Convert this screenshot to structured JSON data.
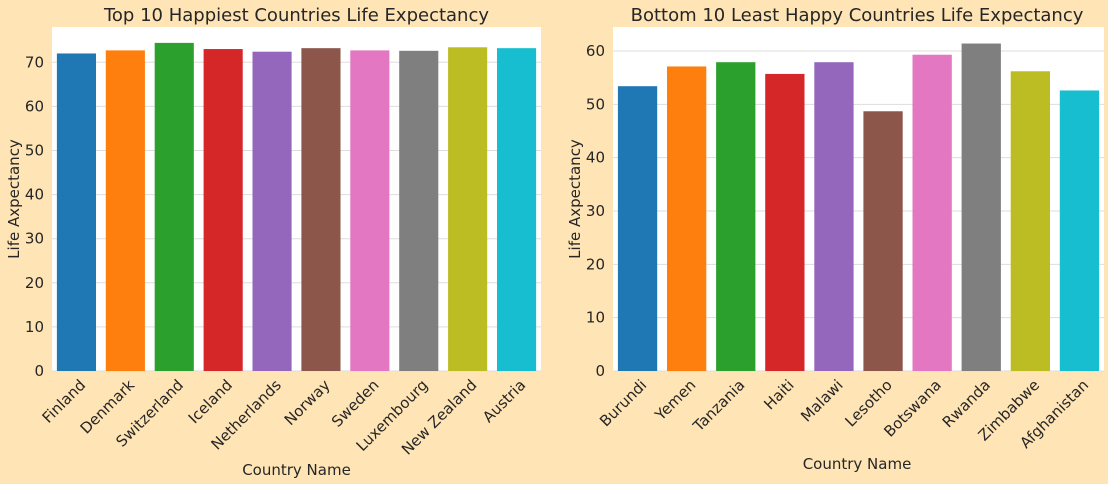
{
  "colors": {
    "background": "#FFE4B5",
    "plot_bg": "#FFFFFF",
    "grid": "#DDDDDD",
    "palette": [
      "#1f77b4",
      "#ff7f0e",
      "#2ca02c",
      "#d62728",
      "#9467bd",
      "#8c564b",
      "#e377c2",
      "#7f7f7f",
      "#bcbd22",
      "#17becf"
    ]
  },
  "chart_data": [
    {
      "type": "bar",
      "title": "Top 10 Happiest Countries Life Expectancy",
      "xlabel": "Country Name",
      "ylabel": "Life Axpectancy",
      "categories": [
        "Finland",
        "Denmark",
        "Switzerland",
        "Iceland",
        "Netherlands",
        "Norway",
        "Sweden",
        "Luxembourg",
        "New Zealand",
        "Austria"
      ],
      "values": [
        72.0,
        72.7,
        74.4,
        73.0,
        72.4,
        73.2,
        72.7,
        72.6,
        73.4,
        73.2
      ],
      "ylim": [
        0,
        78
      ],
      "yticks": [
        0,
        10,
        20,
        30,
        40,
        50,
        60,
        70
      ],
      "grid": true
    },
    {
      "type": "bar",
      "title": "Bottom 10 Least Happy Countries Life Expectancy",
      "xlabel": "Country Name",
      "ylabel": "Life Axpectancy",
      "categories": [
        "Burundi",
        "Yemen",
        "Tanzania",
        "Haiti",
        "Malawi",
        "Lesotho",
        "Botswana",
        "Rwanda",
        "Zimbabwe",
        "Afghanistan"
      ],
      "values": [
        53.4,
        57.1,
        57.9,
        55.7,
        57.9,
        48.7,
        59.3,
        61.4,
        56.2,
        52.6
      ],
      "ylim": [
        0,
        64.5
      ],
      "yticks": [
        0,
        10,
        20,
        30,
        40,
        50,
        60
      ],
      "grid": true
    }
  ]
}
